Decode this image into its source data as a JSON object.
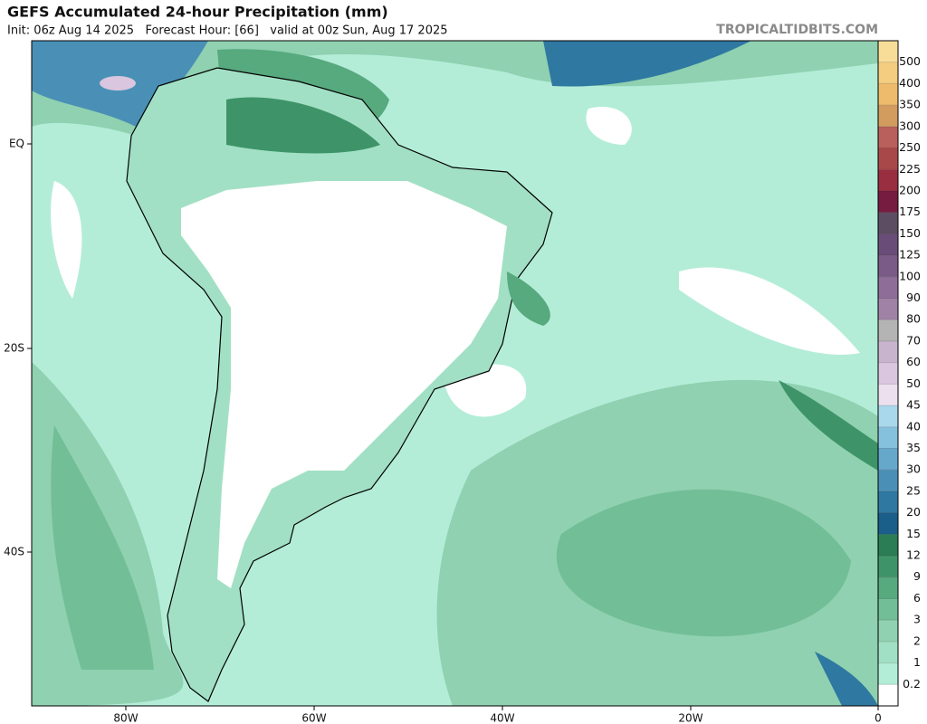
{
  "header": {
    "title": "GEFS Accumulated 24-hour Precipitation (mm)",
    "subtitle": "Init: 06z Aug 14 2025   Forecast Hour: [66]   valid at 00z Sun, Aug 17 2025",
    "site": "TROPICALTIDBITS.COM"
  },
  "map": {
    "lon_labels": [
      "80W",
      "60W",
      "40W",
      "20W",
      "0"
    ],
    "lat_labels": [
      "EQ",
      "20S",
      "40S"
    ]
  },
  "colorbar": {
    "labels": [
      "0.2",
      "1",
      "2",
      "3",
      "6",
      "9",
      "12",
      "15",
      "20",
      "25",
      "30",
      "35",
      "40",
      "45",
      "50",
      "60",
      "70",
      "80",
      "90",
      "100",
      "125",
      "150",
      "175",
      "200",
      "225",
      "250",
      "300",
      "350",
      "400",
      "500"
    ],
    "colors": [
      "#ffffff",
      "#b3edd8",
      "#a2e0c5",
      "#8fd1b0",
      "#72be97",
      "#57a97e",
      "#3e9468",
      "#2b7d55",
      "#1a5e8a",
      "#2f78a1",
      "#4a90b6",
      "#66a8ca",
      "#85c0dc",
      "#a9d8ec",
      "#ece0ee",
      "#dac6de",
      "#c9b4cd",
      "#b4b4b4",
      "#9f82a6",
      "#8e6e98",
      "#7a5a86",
      "#6a4c78",
      "#5c4d62",
      "#761c40",
      "#982e40",
      "#a94848",
      "#b95f5c",
      "#d19c5e",
      "#eebb6c",
      "#f4cd80",
      "#f7dd98"
    ]
  }
}
